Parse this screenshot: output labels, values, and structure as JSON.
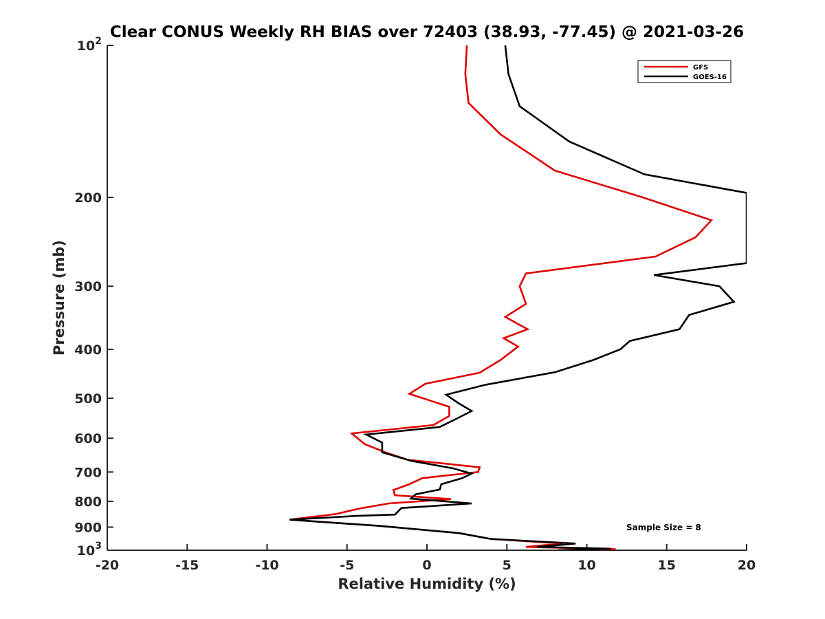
{
  "chart_data": {
    "type": "line",
    "title": "Clear CONUS Weekly RH BIAS over 72403 (38.93, -77.45) @ 2021-03-26",
    "xlabel": "Relative Humidity (%)",
    "ylabel": "Pressure (mb)",
    "xlim": [
      -20,
      20
    ],
    "ylim": [
      100,
      1000
    ],
    "y_scale": "log",
    "y_reversed": true,
    "grid": false,
    "legend_position": "top-right",
    "annotation": "Sample Size = 8",
    "x_ticks": [
      {
        "value": -20,
        "label": "-20"
      },
      {
        "value": -15,
        "label": "-15"
      },
      {
        "value": -10,
        "label": "-10"
      },
      {
        "value": -5,
        "label": "-5"
      },
      {
        "value": 0,
        "label": "0"
      },
      {
        "value": 5,
        "label": "5"
      },
      {
        "value": 10,
        "label": "10"
      },
      {
        "value": 15,
        "label": "15"
      },
      {
        "value": 20,
        "label": "20"
      }
    ],
    "y_ticks": [
      {
        "value": 100,
        "base": "10",
        "exp": "2"
      },
      {
        "value": 200,
        "base": "200",
        "exp": ""
      },
      {
        "value": 300,
        "base": "300",
        "exp": ""
      },
      {
        "value": 400,
        "base": "400",
        "exp": ""
      },
      {
        "value": 500,
        "base": "500",
        "exp": ""
      },
      {
        "value": 600,
        "base": "600",
        "exp": ""
      },
      {
        "value": 700,
        "base": "700",
        "exp": ""
      },
      {
        "value": 800,
        "base": "800",
        "exp": ""
      },
      {
        "value": 900,
        "base": "900",
        "exp": ""
      },
      {
        "value": 1000,
        "base": "10",
        "exp": "3"
      }
    ],
    "series": [
      {
        "name": "GFS",
        "color": "#e00000",
        "points": [
          [
            2.5,
            100
          ],
          [
            2.4,
            114
          ],
          [
            2.6,
            130
          ],
          [
            4.6,
            150
          ],
          [
            8,
            177
          ],
          [
            13.5,
            200
          ],
          [
            17.8,
            222
          ],
          [
            16.8,
            240
          ],
          [
            14.3,
            262
          ],
          [
            6.2,
            283
          ],
          [
            5.8,
            300
          ],
          [
            6.2,
            325
          ],
          [
            4.9,
            345
          ],
          [
            6.3,
            365
          ],
          [
            4.8,
            380
          ],
          [
            5.7,
            395
          ],
          [
            4.6,
            420
          ],
          [
            3.3,
            445
          ],
          [
            -0.1,
            468
          ],
          [
            -1.1,
            490
          ],
          [
            1.4,
            520
          ],
          [
            1.4,
            542
          ],
          [
            0.4,
            565
          ],
          [
            -4.7,
            587
          ],
          [
            -3.9,
            616
          ],
          [
            -2.6,
            640
          ],
          [
            -1.2,
            662
          ],
          [
            3.3,
            685
          ],
          [
            3.2,
            700
          ],
          [
            -0.3,
            720
          ],
          [
            -1.1,
            740
          ],
          [
            -2.1,
            760
          ],
          [
            -2,
            778
          ],
          [
            1.5,
            792
          ],
          [
            -2.4,
            808
          ],
          [
            -4.3,
            828
          ],
          [
            -5.7,
            848
          ],
          [
            -8.6,
            870
          ],
          [
            -3,
            895
          ],
          [
            2,
            925
          ],
          [
            4,
            950
          ],
          [
            8.5,
            970
          ],
          [
            6.2,
            985
          ],
          [
            11.8,
            995
          ],
          [
            10.6,
            1000
          ]
        ]
      },
      {
        "name": "GOES-16",
        "color": "#000000",
        "points": [
          [
            4.9,
            100
          ],
          [
            5.1,
            114
          ],
          [
            5.8,
            132
          ],
          [
            8.9,
            155
          ],
          [
            13.6,
            180
          ],
          [
            20,
            196
          ],
          [
            20,
            270
          ],
          [
            14.2,
            285
          ],
          [
            18.3,
            300
          ],
          [
            19.2,
            322
          ],
          [
            16.4,
            342
          ],
          [
            15.8,
            365
          ],
          [
            12.7,
            385
          ],
          [
            12.1,
            400
          ],
          [
            10.4,
            420
          ],
          [
            8,
            444
          ],
          [
            3.7,
            470
          ],
          [
            1.2,
            492
          ],
          [
            2,
            512
          ],
          [
            2.8,
            530
          ],
          [
            1.8,
            550
          ],
          [
            0.8,
            570
          ],
          [
            -3.8,
            590
          ],
          [
            -2.8,
            612
          ],
          [
            -2.8,
            640
          ],
          [
            -1,
            665
          ],
          [
            1.6,
            688
          ],
          [
            2.8,
            705
          ],
          [
            2.2,
            720
          ],
          [
            0.9,
            740
          ],
          [
            0.8,
            758
          ],
          [
            -0.7,
            775
          ],
          [
            -1,
            790
          ],
          [
            2.8,
            808
          ],
          [
            -1.6,
            825
          ],
          [
            -2,
            850
          ],
          [
            -4.4,
            855
          ],
          [
            -8.6,
            870
          ],
          [
            -3,
            895
          ],
          [
            2,
            925
          ],
          [
            4,
            950
          ],
          [
            9.3,
            970
          ],
          [
            6.9,
            985
          ],
          [
            11.5,
            993
          ],
          [
            8.2,
            1000
          ]
        ]
      }
    ]
  }
}
